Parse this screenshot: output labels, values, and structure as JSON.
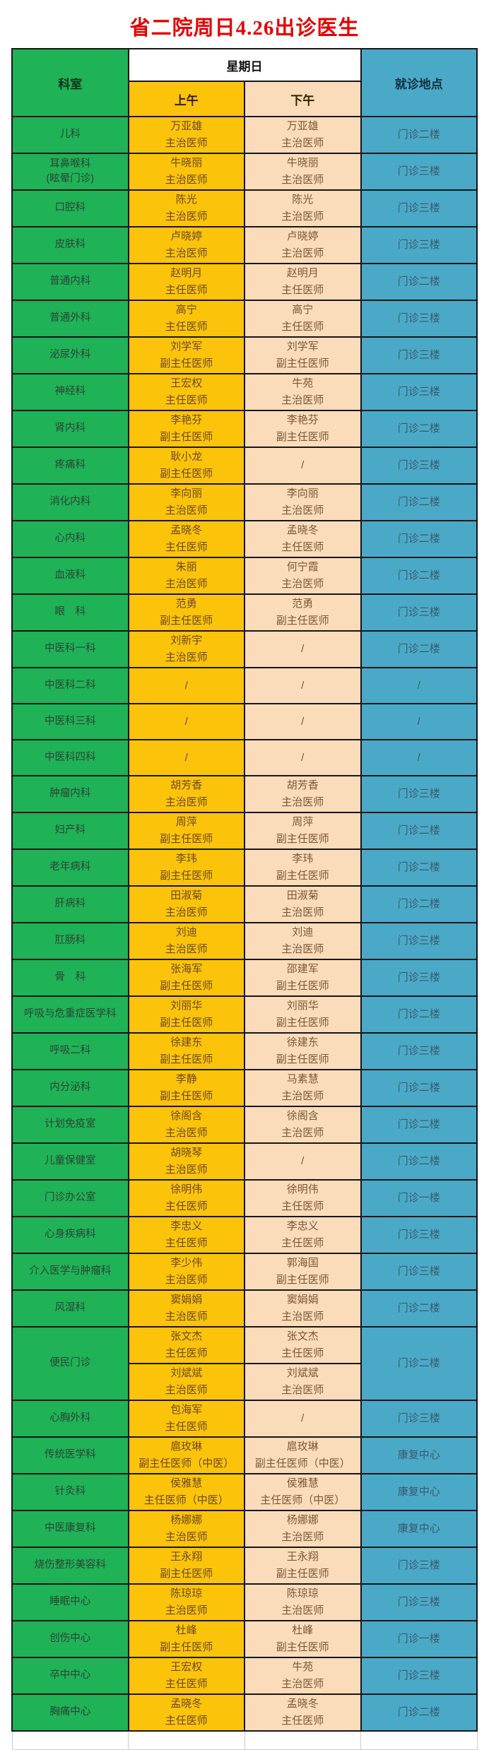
{
  "title": "省二院周日4.26出诊医生",
  "palette": {
    "title_red": "#e60000",
    "dept_green": "#1fb257",
    "morning_yellow": "#fcc30b",
    "afternoon_peach": "#fbdcba",
    "location_teal": "#4ba9c8",
    "border_dark": "#161616"
  },
  "table": {
    "headers": {
      "department": "科室",
      "day": "星期日",
      "morning": "上午",
      "afternoon": "下午",
      "location": "就诊地点"
    },
    "rows": [
      {
        "dept": "儿科",
        "am": [
          "万亚雄",
          "主治医师"
        ],
        "pm": [
          "万亚雄",
          "主治医师"
        ],
        "loc": "门诊二楼"
      },
      {
        "dept": "耳鼻喉科\n(眩晕门诊)",
        "am": [
          "牛晓丽",
          "主治医师"
        ],
        "pm": [
          "牛晓丽",
          "主治医师"
        ],
        "loc": "门诊三楼"
      },
      {
        "dept": "口腔科",
        "am": [
          "陈光",
          "主治医师"
        ],
        "pm": [
          "陈光",
          "主治医师"
        ],
        "loc": "门诊三楼"
      },
      {
        "dept": "皮肤科",
        "am": [
          "卢晓婷",
          "主治医师"
        ],
        "pm": [
          "卢晓婷",
          "主治医师"
        ],
        "loc": "门诊三楼"
      },
      {
        "dept": "普通内科",
        "am": [
          "赵明月",
          "主任医师"
        ],
        "pm": [
          "赵明月",
          "主任医师"
        ],
        "loc": "门诊二楼"
      },
      {
        "dept": "普通外科",
        "am": [
          "高宁",
          "主任医师"
        ],
        "pm": [
          "高宁",
          "主任医师"
        ],
        "loc": "门诊三楼"
      },
      {
        "dept": "泌尿外科",
        "am": [
          "刘学军",
          "副主任医师"
        ],
        "pm": [
          "刘学军",
          "副主任医师"
        ],
        "loc": "门诊三楼"
      },
      {
        "dept": "神经科",
        "am": [
          "王宏权",
          "主任医师"
        ],
        "pm": [
          "牛苑",
          "主治医师"
        ],
        "loc": "门诊三楼"
      },
      {
        "dept": "肾内科",
        "am": [
          "李艳芬",
          "副主任医师"
        ],
        "pm": [
          "李艳芬",
          "副主任医师"
        ],
        "loc": "门诊二楼"
      },
      {
        "dept": "疼痛科",
        "am": [
          "耿小龙",
          "副主任医师"
        ],
        "pm": [
          "/"
        ],
        "loc": "门诊三楼"
      },
      {
        "dept": "消化内科",
        "am": [
          "李向丽",
          "主治医师"
        ],
        "pm": [
          "李向丽",
          "主治医师"
        ],
        "loc": "门诊二楼"
      },
      {
        "dept": "心内科",
        "am": [
          "孟晓冬",
          "主任医师"
        ],
        "pm": [
          "孟晓冬",
          "主任医师"
        ],
        "loc": "门诊二楼"
      },
      {
        "dept": "血液科",
        "am": [
          "朱丽",
          "主治医师"
        ],
        "pm": [
          "何宁霞",
          "主治医师"
        ],
        "loc": "门诊二楼"
      },
      {
        "dept": "眼　科",
        "am": [
          "范勇",
          "副主任医师"
        ],
        "pm": [
          "范勇",
          "副主任医师"
        ],
        "loc": "门诊三楼"
      },
      {
        "dept": "中医科一科",
        "am": [
          "刘新宇",
          "主治医师"
        ],
        "pm": [
          "/"
        ],
        "loc": "门诊二楼"
      },
      {
        "dept": "中医科二科",
        "am": [
          "/"
        ],
        "pm": [
          "/"
        ],
        "loc": "/"
      },
      {
        "dept": "中医科三科",
        "am": [
          "/"
        ],
        "pm": [
          "/"
        ],
        "loc": "/"
      },
      {
        "dept": "中医科四科",
        "am": [
          "/"
        ],
        "pm": [
          "/"
        ],
        "loc": "/"
      },
      {
        "dept": "肿瘤内科",
        "am": [
          "胡芳香",
          "主治医师"
        ],
        "pm": [
          "胡芳香",
          "主治医师"
        ],
        "loc": "门诊三楼"
      },
      {
        "dept": "妇产科",
        "am": [
          "周萍",
          "副主任医师"
        ],
        "pm": [
          "周萍",
          "副主任医师"
        ],
        "loc": "门诊二楼"
      },
      {
        "dept": "老年病科",
        "am": [
          "李玮",
          "副主任医师"
        ],
        "pm": [
          "李玮",
          "副主任医师"
        ],
        "loc": "门诊二楼"
      },
      {
        "dept": "肝病科",
        "am": [
          "田淑菊",
          "主治医师"
        ],
        "pm": [
          "田淑菊",
          "主治医师"
        ],
        "loc": "门诊二楼"
      },
      {
        "dept": "肛肠科",
        "am": [
          "刘迪",
          "主治医师"
        ],
        "pm": [
          "刘迪",
          "主治医师"
        ],
        "loc": "门诊三楼"
      },
      {
        "dept": "骨　科",
        "am": [
          "张海军",
          "副主任医师"
        ],
        "pm": [
          "邵建军",
          "副主任医师"
        ],
        "loc": "门诊三楼"
      },
      {
        "dept": "呼吸与危重症医学科",
        "am": [
          "刘丽华",
          "副主任医师"
        ],
        "pm": [
          "刘丽华",
          "副主任医师"
        ],
        "loc": "门诊二楼"
      },
      {
        "dept": "呼吸二科",
        "am": [
          "徐建东",
          "副主任医师"
        ],
        "pm": [
          "徐建东",
          "副主任医师"
        ],
        "loc": "门诊三楼"
      },
      {
        "dept": "内分泌科",
        "am": [
          "李静",
          "副主任医师"
        ],
        "pm": [
          "马素慧",
          "主治医师"
        ],
        "loc": "门诊二楼"
      },
      {
        "dept": "计划免疫室",
        "am": [
          "徐阁含",
          "主治医师"
        ],
        "pm": [
          "徐阁含",
          "主治医师"
        ],
        "loc": "门诊二楼"
      },
      {
        "dept": "儿童保健室",
        "am": [
          "胡晓琴",
          "主治医师"
        ],
        "pm": [
          "/"
        ],
        "loc": "门诊二楼"
      },
      {
        "dept": "门诊办公室",
        "am": [
          "徐明伟",
          "主任医师"
        ],
        "pm": [
          "徐明伟",
          "主任医师"
        ],
        "loc": "门诊一楼"
      },
      {
        "dept": "心身疾病科",
        "am": [
          "李忠义",
          "主任医师"
        ],
        "pm": [
          "李忠义",
          "主任医师"
        ],
        "loc": "门诊三楼"
      },
      {
        "dept": "介入医学与肿瘤科",
        "am": [
          "李少伟",
          "主治医师"
        ],
        "pm": [
          "郭海国",
          "副主任医师"
        ],
        "loc": "门诊三楼"
      },
      {
        "dept": "风湿科",
        "am": [
          "窦娟娟",
          "主治医师"
        ],
        "pm": [
          "窦娟娟",
          "主治医师"
        ],
        "loc": "门诊二楼"
      },
      {
        "dept": "便民门诊",
        "loc": "门诊二楼",
        "sub": [
          {
            "am": [
              "张文杰",
              "主任医师"
            ],
            "pm": [
              "张文杰",
              "主任医师"
            ]
          },
          {
            "am": [
              "刘斌斌",
              "主治医师"
            ],
            "pm": [
              "刘斌斌",
              "主治医师"
            ]
          }
        ]
      },
      {
        "dept": "心胸外科",
        "am": [
          "包海军",
          "主任医师"
        ],
        "pm": [
          "/"
        ],
        "loc": "门诊三楼"
      },
      {
        "dept": "传统医学科",
        "am": [
          "扈玫琳",
          "副主任医师（中医）"
        ],
        "pm": [
          "扈玫琳",
          "副主任医师（中医）"
        ],
        "loc": "康复中心"
      },
      {
        "dept": "针灸科",
        "am": [
          "侯雅慧",
          "主任医师（中医）"
        ],
        "pm": [
          "侯雅慧",
          "主任医师（中医）"
        ],
        "loc": "康复中心"
      },
      {
        "dept": "中医康复科",
        "am": [
          "杨娜娜",
          "主治医师"
        ],
        "pm": [
          "杨娜娜",
          "主治医师"
        ],
        "loc": "康复中心"
      },
      {
        "dept": "烧伤整形美容科",
        "am": [
          "王永翔",
          "副主任医师"
        ],
        "pm": [
          "王永翔",
          "副主任医师"
        ],
        "loc": "门诊三楼"
      },
      {
        "dept": "睡眠中心",
        "am": [
          "陈琼琼",
          "主治医师"
        ],
        "pm": [
          "陈琼琼",
          "主治医师"
        ],
        "loc": "门诊三楼"
      },
      {
        "dept": "创伤中心",
        "am": [
          "杜峰",
          "副主任医师"
        ],
        "pm": [
          "杜峰",
          "副主任医师"
        ],
        "loc": "门诊一楼"
      },
      {
        "dept": "卒中中心",
        "am": [
          "王宏权",
          "主任医师"
        ],
        "pm": [
          "牛苑",
          "主治医师"
        ],
        "loc": "门诊三楼"
      },
      {
        "dept": "胸痛中心",
        "am": [
          "孟晓冬",
          "主任医师"
        ],
        "pm": [
          "孟晓冬",
          "主任医师"
        ],
        "loc": "门诊二楼"
      }
    ]
  }
}
